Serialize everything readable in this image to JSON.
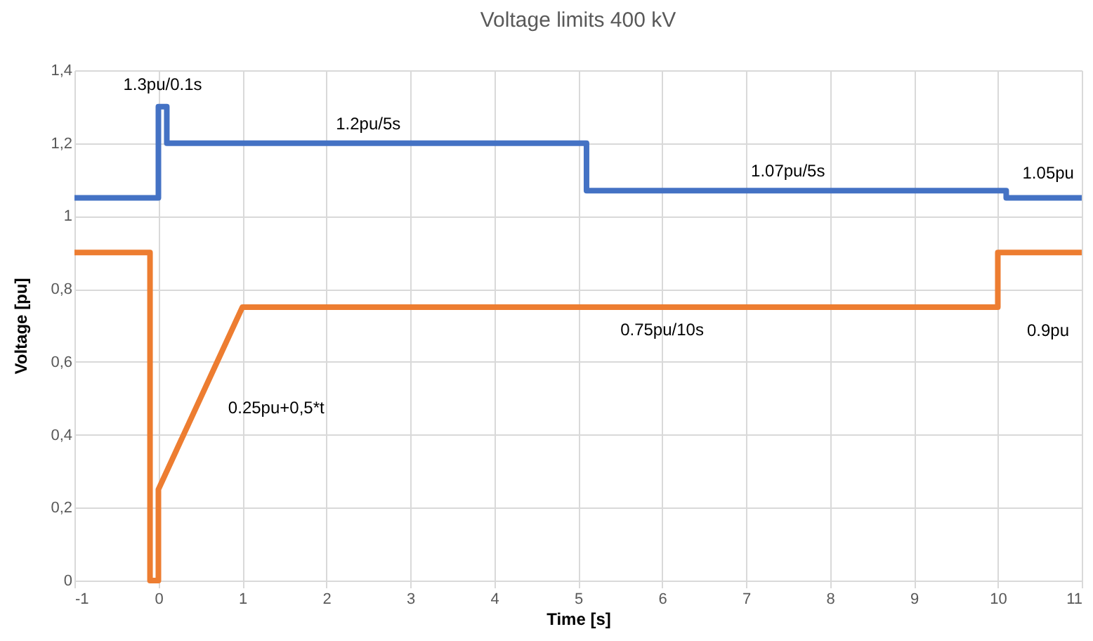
{
  "chart_data": {
    "type": "line",
    "title": "Voltage limits 400 kV",
    "xlabel": "Time [s]",
    "ylabel": "Voltage [pu]",
    "series": [
      {
        "color": "#4472c4",
        "x": [
          -1,
          0,
          0,
          0.1,
          0.1,
          5.1,
          5.1,
          10.1,
          10.1,
          11
        ],
        "values": [
          1.05,
          1.05,
          1.3,
          1.3,
          1.2,
          1.2,
          1.07,
          1.07,
          1.05,
          1.05
        ]
      },
      {
        "color": "#ed7d31",
        "x": [
          -1,
          -0.1,
          -0.1,
          0,
          0,
          1,
          10,
          10,
          11
        ],
        "values": [
          0.9,
          0.9,
          0,
          0,
          0.25,
          0.75,
          0.75,
          0.9,
          0.9
        ]
      }
    ],
    "xlim": [
      -1,
      11
    ],
    "xticks": [
      -1,
      0,
      1,
      2,
      3,
      4,
      5,
      6,
      7,
      8,
      9,
      10,
      11
    ],
    "ylim": [
      0,
      1.4
    ],
    "yticks": [
      0,
      {
        "value": 0.2,
        "label": "0,2"
      },
      {
        "value": 0.4,
        "label": "0,4"
      },
      {
        "value": 0.6,
        "label": "0,6"
      },
      {
        "value": 0.8,
        "label": "0,8"
      },
      1,
      {
        "value": 1.2,
        "label": "1,2"
      },
      {
        "value": 1.4,
        "label": "1,4"
      }
    ],
    "grid": true,
    "legend": false,
    "marker": "none",
    "line_style": "solid",
    "annotations": [
      {
        "text": "1.3pu/0.1s",
        "x": 0.05,
        "y": 1.3
      },
      {
        "text": "1.2pu/5s",
        "x": 2.5,
        "y": 1.2
      },
      {
        "text": "1.07pu/5s",
        "x": 7.5,
        "y": 1.07
      },
      {
        "text": "1.05pu",
        "x": 10.6,
        "y": 1.05
      },
      {
        "text": "0.25pu+0,5*t",
        "x": 0.45,
        "y": 0.475
      },
      {
        "text": "0.75pu/10s",
        "x": 6,
        "y": 0.75
      },
      "0.9pu"
    ]
  }
}
